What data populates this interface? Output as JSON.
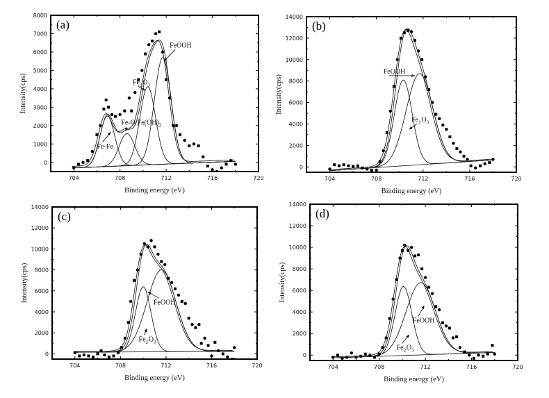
{
  "chart_data": [
    {
      "type": "scatter",
      "panel_label": "(a)",
      "xlabel": "Binding energy (eV)",
      "ylabel": "Intensity(cps)",
      "xlim": [
        702,
        720
      ],
      "ylim": [
        -500,
        8000
      ],
      "xticks": [
        704,
        708,
        712,
        716,
        720
      ],
      "yticks": [
        0,
        1000,
        2000,
        3000,
        4000,
        5000,
        6000,
        7000,
        8000
      ],
      "baseline": [
        [
          704,
          -300
        ],
        [
          718,
          60
        ]
      ],
      "components": [
        {
          "name": "Fe-Fe",
          "center": 706.9,
          "height": 2750,
          "fwhm": 1.5
        },
        {
          "name": "Fe-O/Fe(OH)2",
          "center": 708.6,
          "height": 1750,
          "fwhm": 1.6
        },
        {
          "name": "Fe2O3",
          "center": 710.4,
          "height": 4250,
          "fwhm": 1.6
        },
        {
          "name": "FeOOH",
          "center": 711.7,
          "height": 5800,
          "fwhm": 1.7
        }
      ],
      "annotations": [
        {
          "text": "FeOOH",
          "at": [
            712.3,
            6250
          ],
          "arrow_to": [
            711.8,
            5500
          ]
        },
        {
          "text": "Fe2O3",
          "at": [
            709.1,
            4250
          ],
          "arrow_to": [
            710.2,
            3900
          ]
        },
        {
          "text": "Fe-O/Fe(OH)2",
          "at": [
            708.1,
            2050
          ],
          "arrow_to": [
            708.5,
            1700
          ]
        },
        {
          "text": "Fe-Fe",
          "at": [
            706.0,
            750
          ],
          "arrow_to": [
            707.2,
            1650
          ]
        }
      ],
      "points": [
        [
          704.0,
          -300
        ],
        [
          704.4,
          -100
        ],
        [
          704.8,
          0
        ],
        [
          705.2,
          100
        ],
        [
          705.6,
          600
        ],
        [
          706.0,
          1500
        ],
        [
          706.3,
          2000
        ],
        [
          706.6,
          2900
        ],
        [
          706.8,
          3400
        ],
        [
          707.0,
          3000
        ],
        [
          707.3,
          2600
        ],
        [
          707.6,
          2500
        ],
        [
          708.0,
          2600
        ],
        [
          708.4,
          2800
        ],
        [
          708.8,
          3500
        ],
        [
          709.0,
          2800
        ],
        [
          709.3,
          3800
        ],
        [
          709.6,
          4500
        ],
        [
          709.9,
          5000
        ],
        [
          710.2,
          5900
        ],
        [
          710.5,
          6400
        ],
        [
          710.8,
          6600
        ],
        [
          711.1,
          7000
        ],
        [
          711.4,
          7100
        ],
        [
          711.7,
          6000
        ],
        [
          712.0,
          4500
        ],
        [
          712.3,
          3500
        ],
        [
          712.6,
          2000
        ],
        [
          712.9,
          2000
        ],
        [
          713.2,
          1500
        ],
        [
          713.6,
          1200
        ],
        [
          714.0,
          900
        ],
        [
          714.4,
          1000
        ],
        [
          714.8,
          900
        ],
        [
          715.2,
          300
        ],
        [
          715.6,
          -200
        ],
        [
          716.0,
          -400
        ],
        [
          716.4,
          -500
        ],
        [
          716.8,
          -300
        ],
        [
          717.2,
          -100
        ],
        [
          717.6,
          100
        ],
        [
          718.0,
          -100
        ]
      ]
    },
    {
      "type": "scatter",
      "panel_label": "(b)",
      "xlabel": "Binding energy (eV)",
      "ylabel": "Intensity(cps)",
      "xlim": [
        702,
        720
      ],
      "ylim": [
        -500,
        14000
      ],
      "xticks": [
        704,
        708,
        712,
        716,
        720
      ],
      "yticks": [
        0,
        2000,
        4000,
        6000,
        8000,
        10000,
        12000,
        14000
      ],
      "baseline": [
        [
          704,
          -350
        ],
        [
          718,
          650
        ]
      ],
      "components": [
        {
          "name": "Fe2O3",
          "center": 710.3,
          "height": 8000,
          "fwhm": 1.8
        },
        {
          "name": "FeOOH",
          "center": 711.7,
          "height": 8500,
          "fwhm": 2.7
        }
      ],
      "annotations": [
        {
          "text": "FeOOH",
          "at": [
            708.6,
            8700
          ],
          "arrow_to": [
            711.3,
            8500
          ]
        },
        {
          "text": "Fe2O3",
          "at": [
            711.0,
            4200
          ],
          "arrow_to": [
            710.8,
            3500
          ]
        }
      ],
      "points": [
        [
          704.0,
          -200
        ],
        [
          704.4,
          200
        ],
        [
          704.8,
          100
        ],
        [
          705.2,
          200
        ],
        [
          705.6,
          100
        ],
        [
          706.0,
          50
        ],
        [
          706.4,
          100
        ],
        [
          706.8,
          -100
        ],
        [
          707.2,
          -200
        ],
        [
          707.6,
          -300
        ],
        [
          708.0,
          -300
        ],
        [
          708.3,
          500
        ],
        [
          708.6,
          1500
        ],
        [
          708.9,
          3200
        ],
        [
          709.2,
          5200
        ],
        [
          709.5,
          7500
        ],
        [
          709.8,
          10000
        ],
        [
          710.1,
          12000
        ],
        [
          710.4,
          12500
        ],
        [
          710.7,
          12700
        ],
        [
          711.0,
          12600
        ],
        [
          711.3,
          11800
        ],
        [
          711.6,
          10800
        ],
        [
          711.9,
          10000
        ],
        [
          712.2,
          8400
        ],
        [
          712.5,
          7200
        ],
        [
          712.8,
          6000
        ],
        [
          713.1,
          4900
        ],
        [
          713.4,
          4500
        ],
        [
          713.7,
          3900
        ],
        [
          714.0,
          3500
        ],
        [
          714.3,
          2800
        ],
        [
          714.6,
          2200
        ],
        [
          714.9,
          1700
        ],
        [
          715.2,
          1400
        ],
        [
          715.5,
          1000
        ],
        [
          715.8,
          700
        ],
        [
          716.1,
          100
        ],
        [
          716.5,
          -100
        ],
        [
          716.9,
          100
        ],
        [
          717.3,
          300
        ],
        [
          717.7,
          400
        ],
        [
          718.0,
          700
        ]
      ]
    },
    {
      "type": "scatter",
      "panel_label": "(c)",
      "xlabel": "Binding energy (eV)",
      "ylabel": "Intensity(cps)",
      "xlim": [
        702,
        720
      ],
      "ylim": [
        -500,
        14000
      ],
      "xticks": [
        704,
        708,
        712,
        716,
        720
      ],
      "yticks": [
        0,
        2000,
        4000,
        6000,
        8000,
        10000,
        12000,
        14000
      ],
      "baseline": [
        [
          704,
          150
        ],
        [
          718,
          250
        ]
      ],
      "components": [
        {
          "name": "Fe2O3",
          "center": 710.0,
          "height": 6200,
          "fwhm": 1.6
        },
        {
          "name": "FeOOH",
          "center": 711.6,
          "height": 7800,
          "fwhm": 3.0
        }
      ],
      "annotations": [
        {
          "text": "FeOOH",
          "at": [
            710.9,
            4700
          ],
          "arrow_to": [
            710.4,
            5900
          ]
        },
        {
          "text": "Fe2O3",
          "at": [
            709.6,
            1200
          ],
          "arrow_to": [
            710.3,
            2400
          ]
        }
      ],
      "points": [
        [
          704.0,
          100
        ],
        [
          704.4,
          -200
        ],
        [
          704.8,
          -100
        ],
        [
          705.2,
          -200
        ],
        [
          705.6,
          -300
        ],
        [
          706.0,
          0
        ],
        [
          706.3,
          300
        ],
        [
          706.6,
          -100
        ],
        [
          707.0,
          -300
        ],
        [
          707.4,
          -200
        ],
        [
          707.8,
          100
        ],
        [
          708.1,
          600
        ],
        [
          708.4,
          1500
        ],
        [
          708.7,
          3000
        ],
        [
          708.9,
          5000
        ],
        [
          709.2,
          7000
        ],
        [
          709.5,
          8000
        ],
        [
          709.8,
          9500
        ],
        [
          710.1,
          10500
        ],
        [
          710.4,
          10200
        ],
        [
          710.7,
          10800
        ],
        [
          711.0,
          10200
        ],
        [
          711.3,
          9500
        ],
        [
          711.6,
          8800
        ],
        [
          711.9,
          8500
        ],
        [
          712.2,
          7200
        ],
        [
          712.5,
          6800
        ],
        [
          712.8,
          6200
        ],
        [
          713.1,
          5600
        ],
        [
          713.4,
          5000
        ],
        [
          713.7,
          4800
        ],
        [
          714.0,
          3400
        ],
        [
          714.3,
          2800
        ],
        [
          714.6,
          2500
        ],
        [
          714.9,
          2800
        ],
        [
          715.1,
          1000
        ],
        [
          715.4,
          1500
        ],
        [
          715.7,
          800
        ],
        [
          716.0,
          -200
        ],
        [
          716.3,
          1100
        ],
        [
          716.6,
          300
        ],
        [
          717.0,
          0
        ],
        [
          717.4,
          -300
        ],
        [
          717.8,
          -500
        ],
        [
          718.0,
          600
        ]
      ]
    },
    {
      "type": "scatter",
      "panel_label": "(d)",
      "xlabel": "Binding energy (eV)",
      "ylabel": "Intensity(cps)",
      "xlim": [
        702,
        720
      ],
      "ylim": [
        -500,
        14000
      ],
      "xticks": [
        704,
        708,
        712,
        716,
        720
      ],
      "yticks": [
        0,
        2000,
        4000,
        6000,
        8000,
        10000,
        12000,
        14000
      ],
      "baseline": [
        [
          704,
          -250
        ],
        [
          718,
          250
        ]
      ],
      "components": [
        {
          "name": "Fe2O3",
          "center": 710.1,
          "height": 6400,
          "fwhm": 1.7
        },
        {
          "name": "FeOOH",
          "center": 711.6,
          "height": 6700,
          "fwhm": 3.0
        }
      ],
      "annotations": [
        {
          "text": "FeOOH",
          "at": [
            710.9,
            3000
          ],
          "arrow_to": [
            711.9,
            4600
          ]
        },
        {
          "text": "Fe2O3",
          "at": [
            709.5,
            500
          ],
          "arrow_to": [
            710.6,
            1900
          ]
        }
      ],
      "points": [
        [
          704.0,
          -200
        ],
        [
          704.4,
          0
        ],
        [
          704.8,
          -300
        ],
        [
          705.2,
          -200
        ],
        [
          705.6,
          200
        ],
        [
          706.0,
          -200
        ],
        [
          706.4,
          -100
        ],
        [
          706.8,
          100
        ],
        [
          707.2,
          0
        ],
        [
          707.6,
          -200
        ],
        [
          708.0,
          100
        ],
        [
          708.3,
          700
        ],
        [
          708.6,
          1600
        ],
        [
          708.9,
          3400
        ],
        [
          709.2,
          5200
        ],
        [
          709.5,
          7000
        ],
        [
          709.8,
          9000
        ],
        [
          710.0,
          9700
        ],
        [
          710.2,
          10200
        ],
        [
          710.5,
          9700
        ],
        [
          710.8,
          10000
        ],
        [
          711.1,
          9200
        ],
        [
          711.4,
          9300
        ],
        [
          711.7,
          8000
        ],
        [
          712.0,
          7200
        ],
        [
          712.3,
          6300
        ],
        [
          712.6,
          5700
        ],
        [
          712.9,
          4500
        ],
        [
          713.2,
          4200
        ],
        [
          713.5,
          3000
        ],
        [
          713.8,
          2700
        ],
        [
          714.1,
          2500
        ],
        [
          714.4,
          1600
        ],
        [
          714.7,
          1700
        ],
        [
          715.0,
          700
        ],
        [
          715.4,
          300
        ],
        [
          715.8,
          0
        ],
        [
          716.2,
          -300
        ],
        [
          716.6,
          0
        ],
        [
          717.0,
          -100
        ],
        [
          717.4,
          100
        ],
        [
          717.8,
          900
        ],
        [
          718.0,
          100
        ]
      ]
    }
  ]
}
